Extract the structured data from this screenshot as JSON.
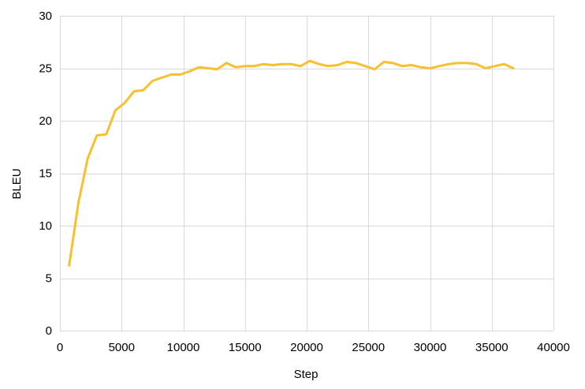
{
  "chart_data": {
    "type": "line",
    "title": "",
    "xlabel": "Step",
    "ylabel": "BLEU",
    "xlim": [
      0,
      40000
    ],
    "ylim": [
      0,
      30
    ],
    "xticks": [
      0,
      5000,
      10000,
      15000,
      20000,
      25000,
      30000,
      35000,
      40000
    ],
    "yticks": [
      0,
      5,
      10,
      15,
      20,
      25,
      30
    ],
    "grid": true,
    "legend": "none",
    "series": [
      {
        "name": "BLEU",
        "color": "#F6C02F",
        "x": [
          750,
          1500,
          2250,
          3000,
          3750,
          4500,
          5250,
          6000,
          6750,
          7500,
          8250,
          9000,
          9750,
          10500,
          11250,
          12000,
          12750,
          13500,
          14250,
          15000,
          15750,
          16500,
          17250,
          18000,
          18750,
          19500,
          20250,
          21000,
          21750,
          22500,
          23250,
          24000,
          24750,
          25500,
          26250,
          27000,
          27750,
          28500,
          29250,
          30000,
          30750,
          31500,
          32250,
          33000,
          33750,
          34500,
          35250,
          36000,
          36750
        ],
        "values": [
          6.2,
          12.2,
          16.4,
          18.6,
          18.7,
          21.0,
          21.7,
          22.8,
          22.9,
          23.8,
          24.1,
          24.4,
          24.4,
          24.7,
          25.1,
          25.0,
          24.9,
          25.5,
          25.1,
          25.2,
          25.2,
          25.4,
          25.3,
          25.4,
          25.4,
          25.2,
          25.7,
          25.4,
          25.2,
          25.3,
          25.6,
          25.5,
          25.2,
          24.9,
          25.6,
          25.5,
          25.2,
          25.3,
          25.1,
          25.0,
          25.2,
          25.4,
          25.5,
          25.5,
          25.4,
          25.0,
          25.2,
          25.4,
          25.0
        ]
      }
    ]
  }
}
